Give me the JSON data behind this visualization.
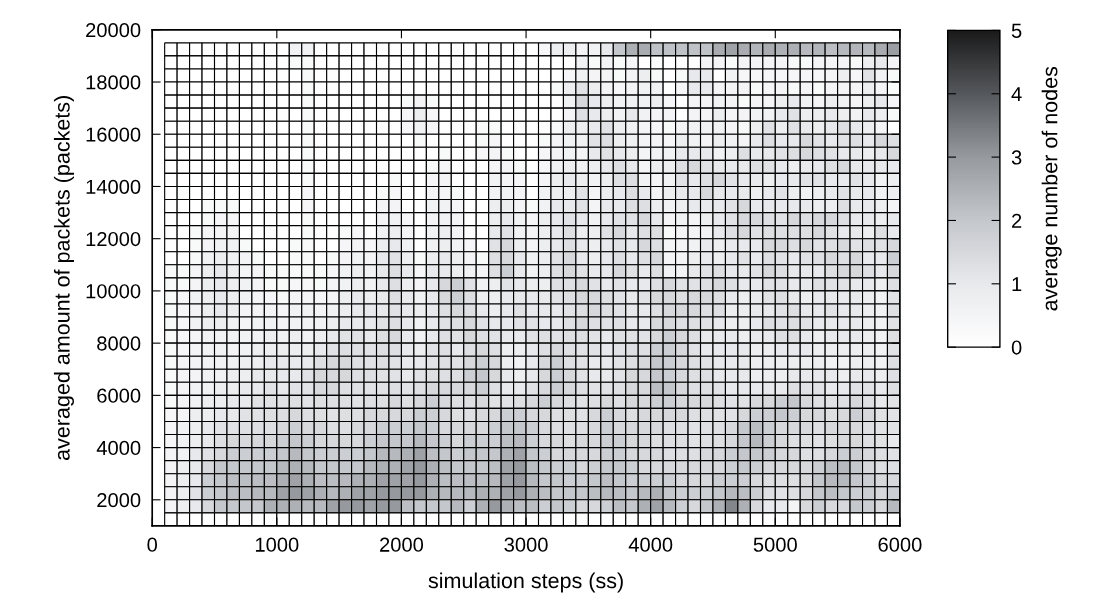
{
  "chart_data": {
    "type": "heatmap",
    "xlabel": "simulation steps (ss)",
    "ylabel": "averaged amount of packets (packets)",
    "clabel": "average number of nodes",
    "x": [
      150,
      250,
      350,
      450,
      550,
      650,
      750,
      850,
      950,
      1050,
      1150,
      1250,
      1350,
      1450,
      1550,
      1650,
      1750,
      1850,
      1950,
      2050,
      2150,
      2250,
      2350,
      2450,
      2550,
      2650,
      2750,
      2850,
      2950,
      3050,
      3150,
      3250,
      3350,
      3450,
      3550,
      3650,
      3750,
      3850,
      3950,
      4050,
      4150,
      4250,
      4350,
      4450,
      4550,
      4650,
      4750,
      4850,
      4950,
      5050,
      5150,
      5250,
      5350,
      5450,
      5550,
      5650,
      5750,
      5850,
      5950
    ],
    "y": [
      19250,
      18750,
      18250,
      17750,
      17250,
      16750,
      16250,
      15750,
      15250,
      14750,
      14250,
      13750,
      13250,
      12750,
      12250,
      11750,
      11250,
      10750,
      10250,
      9750,
      9250,
      8750,
      8250,
      7750,
      7250,
      6750,
      6250,
      5750,
      5250,
      4750,
      4250,
      3750,
      3250,
      2750,
      2250,
      1750,
      1250
    ],
    "cells": [
      [
        0,
        0,
        0,
        0,
        0,
        0,
        0,
        0,
        0,
        0,
        0.6,
        0.6,
        0,
        0,
        0,
        0,
        0,
        0,
        0,
        0,
        0,
        0,
        0,
        0,
        0,
        0,
        0,
        0,
        0,
        0,
        0.4,
        0.8,
        0.8,
        0.5,
        0.6,
        1,
        2,
        2.5,
        2.6,
        2.1,
        2.1,
        2.1,
        2.1,
        2.1,
        2.6,
        2.8,
        2.6,
        2.4,
        2.6,
        2.5,
        2.5,
        2.3,
        2.4,
        2.2,
        2.3,
        2.4,
        2.3,
        2.6,
        2.9
      ],
      [
        0,
        0,
        0,
        0,
        0,
        0,
        0,
        0,
        0,
        0,
        0.3,
        0.3,
        0,
        0,
        0,
        0,
        0,
        0,
        0,
        0,
        0,
        0,
        0,
        0,
        0,
        0,
        0,
        0,
        0,
        0,
        0,
        0,
        0,
        0.6,
        0.3,
        0.5,
        0.3,
        0.4,
        0,
        0.2,
        0,
        0,
        0,
        0.5,
        0.5,
        0.3,
        0.5,
        0.5,
        0.5,
        0.5,
        0.3,
        0.3,
        0.5,
        0.5,
        0.5,
        0.3,
        0.8,
        1,
        0.5
      ],
      [
        0,
        0,
        0,
        0,
        0,
        0,
        0,
        0,
        0,
        0,
        0,
        0.3,
        0,
        0,
        0,
        0,
        0,
        0,
        0,
        0,
        0,
        0,
        0,
        0,
        0,
        0,
        0,
        0,
        0,
        0,
        0,
        0,
        0.4,
        0.6,
        0.5,
        0.5,
        0.3,
        0.5,
        0.8,
        0.3,
        0,
        0.3,
        1,
        1,
        0,
        0.6,
        0.4,
        0.4,
        0.4,
        0.4,
        0.4,
        0.4,
        0.4,
        0.5,
        0.8,
        0.4,
        1.2,
        0.6,
        0.3
      ],
      [
        0,
        0,
        0,
        0,
        0,
        0,
        0,
        0,
        0,
        0,
        0,
        0.3,
        0,
        0,
        0,
        0,
        0,
        0,
        0,
        0,
        0,
        0,
        0,
        0,
        0,
        0,
        0,
        0,
        0,
        0,
        0,
        0.3,
        0.8,
        1.2,
        0.8,
        0.5,
        0.4,
        0.5,
        0.6,
        0.6,
        0,
        0.4,
        1,
        1,
        0.5,
        0.5,
        0.5,
        0.3,
        0.4,
        0.5,
        0.3,
        0.5,
        0.3,
        0.5,
        0.5,
        0.5,
        0.8,
        0.5,
        0.2
      ],
      [
        0,
        0,
        0,
        0,
        0,
        0,
        0,
        0,
        0,
        0,
        0,
        0.3,
        0,
        0,
        0,
        0,
        0,
        0,
        0,
        0.3,
        0.5,
        0.3,
        0,
        0,
        0,
        0,
        0,
        0,
        0,
        0,
        0,
        0,
        0.6,
        1.5,
        1,
        0.8,
        0.6,
        0.6,
        0.6,
        0.8,
        0.4,
        0,
        0.5,
        0.5,
        0.6,
        0.5,
        0.3,
        0.5,
        0.5,
        0.8,
        1,
        0.6,
        0.5,
        0.8,
        0.6,
        0.5,
        0.8,
        1,
        0.4
      ],
      [
        0,
        0,
        0,
        0,
        0,
        0,
        0,
        0,
        0,
        0,
        0,
        0.3,
        0,
        0,
        0,
        0,
        0,
        0,
        0,
        0.4,
        0.8,
        0.4,
        0,
        0,
        0,
        0,
        0,
        0,
        0,
        0,
        0,
        0,
        0.5,
        1.3,
        1,
        0.8,
        0.6,
        1,
        0.6,
        0.5,
        0.5,
        0,
        0.5,
        0.5,
        0.8,
        0.5,
        0.5,
        0.6,
        0.6,
        1,
        1.2,
        0.8,
        0.8,
        1,
        0.8,
        0.6,
        1,
        0.8,
        0.3
      ],
      [
        0,
        0,
        0,
        0,
        0,
        0,
        0,
        0,
        0,
        0,
        0,
        0.3,
        0,
        0,
        0,
        0,
        0,
        0,
        0,
        0.4,
        0.6,
        0.4,
        0,
        0,
        0,
        0.3,
        0.3,
        0,
        0,
        0,
        0,
        0.3,
        0.8,
        0.8,
        1,
        1.2,
        0.8,
        0.6,
        0.5,
        0.4,
        0.3,
        0.5,
        0.6,
        0.6,
        0.6,
        0.5,
        0.3,
        0.8,
        1.2,
        0.8,
        1.2,
        1,
        0.8,
        1,
        1.3,
        1,
        0.8,
        0.5,
        0
      ],
      [
        0,
        0,
        0,
        0,
        0,
        0,
        0,
        0,
        0,
        0,
        0,
        0.3,
        0,
        0,
        0,
        0,
        0,
        0,
        0,
        0,
        0.3,
        0,
        0,
        0,
        0,
        0.3,
        0.4,
        0,
        0,
        0,
        0.3,
        0.5,
        0.6,
        0.6,
        1.2,
        1.3,
        0.8,
        0.6,
        0.5,
        0.5,
        0.4,
        0.8,
        0.6,
        0.5,
        0.8,
        0.6,
        0.5,
        1,
        1.3,
        1,
        1,
        1.5,
        1.2,
        1,
        1.2,
        1.3,
        1,
        1.5,
        1.3
      ],
      [
        0,
        0,
        0,
        0,
        0,
        0,
        0,
        0,
        0,
        0,
        0,
        0.3,
        0,
        0,
        0,
        0,
        0,
        0,
        0,
        0,
        0,
        0,
        0.3,
        0,
        0,
        0.4,
        0.5,
        0.3,
        0,
        0,
        0.4,
        0.5,
        0.6,
        0.5,
        1,
        1.2,
        1,
        0.8,
        0.5,
        0.6,
        0.6,
        1,
        1,
        1,
        0.6,
        0.8,
        1.3,
        1,
        1,
        1.2,
        1.3,
        1.5,
        1.3,
        1.2,
        1,
        1,
        0.8,
        1,
        1.5
      ],
      [
        0,
        0,
        0,
        0,
        0,
        0,
        0,
        0,
        0,
        0,
        0,
        0.3,
        0,
        0,
        0,
        0,
        0,
        0,
        0,
        0,
        0,
        0.3,
        0.4,
        0,
        0,
        0,
        0.5,
        0.5,
        0.3,
        0,
        0.4,
        0.6,
        0.8,
        0.6,
        0.8,
        1,
        1.3,
        1,
        0.5,
        0.8,
        0.8,
        1.3,
        1.5,
        1.2,
        1,
        1,
        1,
        1.3,
        1.2,
        1,
        0.8,
        1,
        1,
        1.3,
        1.5,
        1,
        1,
        1,
        1
      ],
      [
        0,
        0,
        0,
        0,
        0,
        0,
        0,
        0,
        0,
        0,
        0,
        0.3,
        0,
        0,
        0,
        0,
        0,
        0,
        0.3,
        0,
        0,
        0.4,
        0.5,
        0,
        0,
        0,
        0.6,
        0.5,
        0.4,
        0,
        0.5,
        0.8,
        1,
        0.8,
        0.6,
        0.8,
        1.3,
        1.3,
        0.6,
        0.5,
        0.6,
        1.2,
        1,
        1.3,
        1.5,
        1.2,
        1,
        1,
        0.8,
        1,
        1,
        1.2,
        1.2,
        1,
        1,
        1.2,
        1,
        0.6,
        0.8
      ],
      [
        0,
        0.2,
        0,
        0,
        0,
        0,
        0,
        0,
        0,
        0,
        0,
        0.4,
        0,
        0,
        0,
        0,
        0,
        0.3,
        0.4,
        0,
        0,
        0.5,
        0.5,
        0.3,
        0,
        0,
        0.6,
        0.6,
        0.5,
        0,
        0.6,
        0.8,
        0.8,
        1.2,
        0.5,
        0.8,
        1,
        1.3,
        1,
        0.5,
        0.8,
        1,
        1,
        1.5,
        1,
        1,
        1,
        0.8,
        1,
        1.2,
        0.8,
        0.6,
        0.8,
        1,
        1.2,
        1,
        1,
        0.6,
        0.8
      ],
      [
        0,
        0,
        0,
        0.3,
        0.3,
        0.3,
        0,
        0,
        0,
        0,
        0,
        0.4,
        0,
        0,
        0,
        0,
        0,
        0.5,
        0.5,
        0,
        0,
        0.6,
        0.6,
        0.4,
        0,
        0,
        0.8,
        0.8,
        0.5,
        0.3,
        0.6,
        1,
        1,
        1.2,
        0.5,
        1,
        1,
        1.3,
        1.3,
        0.8,
        0.6,
        0.8,
        1,
        1,
        1,
        1.2,
        1.5,
        1,
        1,
        1,
        1,
        1,
        0.8,
        0.8,
        1.3,
        1,
        1,
        0.8,
        0.5
      ],
      [
        0,
        0,
        0,
        0.3,
        0.4,
        0.4,
        0,
        0,
        0,
        0,
        0,
        0.3,
        0,
        0,
        0,
        0,
        0,
        0.5,
        0.6,
        0.4,
        0,
        0.5,
        0.6,
        0.5,
        0,
        0,
        0.8,
        1,
        0.6,
        0.4,
        0.8,
        1,
        1.2,
        1,
        0.6,
        1,
        1.2,
        1.2,
        1.5,
        1,
        0.5,
        0.6,
        0.5,
        0.8,
        1,
        1.2,
        1.5,
        1.5,
        1.3,
        1.2,
        1.5,
        1.3,
        1.5,
        1.5,
        1.3,
        1,
        1,
        0.8,
        1
      ],
      [
        0,
        0,
        0.3,
        0.5,
        0.5,
        0.5,
        0,
        0,
        0,
        0,
        0,
        0.3,
        0,
        0,
        0.3,
        0.4,
        0,
        0.6,
        0.8,
        0.5,
        0,
        0.6,
        0.8,
        0.5,
        0,
        0,
        1,
        1.2,
        0.6,
        0.5,
        0.8,
        1,
        1.3,
        0.8,
        0.8,
        1.2,
        1.5,
        1,
        1.3,
        1.3,
        0.3,
        0.5,
        0.5,
        0.6,
        1,
        1.3,
        1.5,
        1.2,
        1.3,
        1.3,
        1.3,
        1.3,
        1.5,
        1.2,
        1,
        1,
        0.8,
        1.3,
        1
      ],
      [
        0,
        0,
        0.3,
        0.5,
        0.6,
        0.6,
        0.3,
        0,
        0,
        0,
        0.3,
        0.3,
        0,
        0,
        0.4,
        0.5,
        0.4,
        0.8,
        1,
        0.6,
        0,
        0.6,
        0.8,
        0.6,
        0.4,
        0,
        1.2,
        1.5,
        0.8,
        0.5,
        0.8,
        1,
        1.3,
        1,
        0.8,
        1,
        1.2,
        1,
        1.5,
        1.3,
        0.5,
        0.5,
        0.6,
        1,
        0.8,
        1,
        1,
        1,
        1.5,
        1.5,
        1.3,
        1.5,
        1.2,
        1.3,
        1.5,
        1.2,
        1.3,
        1.2,
        1.5
      ],
      [
        0,
        0,
        0.3,
        0.6,
        0.8,
        0.6,
        0.5,
        0.3,
        0,
        0,
        0.3,
        0.3,
        0,
        0.3,
        0.5,
        0.6,
        0.5,
        1,
        1.2,
        0.8,
        0.3,
        0.8,
        1,
        0.8,
        0.5,
        0.3,
        1.3,
        1.5,
        1,
        0.6,
        0.8,
        1.2,
        1.5,
        1,
        0.8,
        1,
        1.3,
        1,
        1.3,
        1.5,
        0.5,
        0.5,
        0.8,
        1,
        0.8,
        1,
        1.2,
        1,
        1.3,
        1.2,
        1,
        1.2,
        1.3,
        1.5,
        1.3,
        1.5,
        1,
        1,
        1.8
      ],
      [
        0.3,
        0.3,
        0.5,
        0.8,
        1,
        0.8,
        0.5,
        0.5,
        0.3,
        0.3,
        0.3,
        0.3,
        0.3,
        0.4,
        0.6,
        0.8,
        0.6,
        1,
        1.3,
        1,
        0.4,
        1,
        1,
        0.8,
        0.6,
        0.5,
        1.3,
        1.8,
        1,
        0.6,
        0.8,
        1.3,
        1.5,
        1.2,
        1,
        1,
        1.5,
        1.2,
        1,
        1.3,
        0.6,
        0.5,
        1,
        1.2,
        1.3,
        1,
        1,
        1.2,
        1.5,
        1.3,
        1,
        1,
        1,
        1.3,
        1.5,
        1.5,
        1.3,
        1,
        1.5
      ],
      [
        0.3,
        0.3,
        0.5,
        0.8,
        1,
        0.8,
        0.6,
        0.5,
        0.3,
        0.3,
        0.4,
        0.4,
        0.3,
        0.5,
        0.6,
        0.8,
        0.6,
        1,
        1.3,
        0.8,
        0.5,
        1,
        1.5,
        1.8,
        1.2,
        0.6,
        0.8,
        1.2,
        1,
        0.8,
        0.8,
        1.3,
        1.3,
        1.5,
        1.2,
        1,
        1.2,
        1,
        1,
        1.3,
        1.5,
        1.2,
        1.2,
        1.3,
        1.5,
        1.3,
        1,
        1,
        1.2,
        1.2,
        1,
        1,
        1.3,
        1.2,
        1.2,
        1,
        1,
        0.8,
        1.3
      ],
      [
        0.3,
        0.4,
        0.6,
        0.8,
        1,
        0.8,
        0.6,
        0.5,
        0.4,
        0.3,
        0.5,
        0.5,
        0.4,
        0.5,
        0.8,
        1,
        0.8,
        1,
        1.3,
        1,
        0.6,
        1,
        1.5,
        1.8,
        1.3,
        0.8,
        0.8,
        1,
        1,
        1,
        1,
        1.2,
        1.3,
        1.5,
        1.5,
        1.3,
        1.2,
        1,
        1.2,
        1.5,
        1.5,
        1.3,
        1.5,
        1.5,
        1.3,
        1,
        0.8,
        1,
        1.2,
        1.3,
        1,
        0.8,
        1,
        1,
        1,
        1,
        0.8,
        0.6,
        1.2
      ],
      [
        0.3,
        0.4,
        0.5,
        0.8,
        1,
        0.8,
        0.5,
        0.5,
        0.5,
        0.4,
        0.6,
        0.6,
        0.5,
        0.6,
        0.8,
        1,
        1,
        1,
        1.2,
        1,
        0.8,
        1,
        1.3,
        1.5,
        1.3,
        1,
        0.8,
        1,
        1.2,
        1,
        1,
        1,
        1.2,
        1.3,
        1.5,
        1.3,
        1.2,
        1,
        1,
        1.3,
        1.5,
        1.5,
        1.5,
        1.3,
        1.3,
        0.8,
        0.8,
        1,
        1,
        1.2,
        1.3,
        1,
        1,
        1.2,
        1,
        1,
        0.8,
        0.6,
        1.3
      ],
      [
        0.3,
        0.4,
        0.6,
        0.8,
        0.8,
        0.6,
        0.5,
        0.6,
        0.6,
        0.5,
        0.6,
        0.6,
        0.6,
        0.8,
        1,
        1,
        1,
        1.2,
        1.3,
        1,
        0.6,
        1,
        1.2,
        1.3,
        1.5,
        1.2,
        1,
        1,
        1.2,
        1.2,
        1,
        1,
        1.3,
        1.5,
        1.3,
        1.2,
        1.3,
        1,
        1,
        1.5,
        1.5,
        1.3,
        1.3,
        1.2,
        1,
        0.8,
        0.8,
        1,
        1.3,
        1.2,
        1.3,
        1.2,
        1,
        1,
        1,
        1,
        0.8,
        0.6,
        1.2
      ],
      [
        0.3,
        0.4,
        0.5,
        0.6,
        0.6,
        0.6,
        0.6,
        0.6,
        0.8,
        0.6,
        0.8,
        0.6,
        0.8,
        1,
        1.2,
        1.2,
        1,
        1.3,
        1.5,
        1,
        0.6,
        1,
        1.3,
        1.2,
        1.5,
        1.3,
        1.2,
        1,
        1,
        1.2,
        1.3,
        1.2,
        1.3,
        1.3,
        1.2,
        1,
        1.3,
        1.2,
        1.2,
        1.5,
        1.8,
        1.5,
        1.3,
        1,
        1,
        1,
        0.8,
        1,
        1,
        1.3,
        1.3,
        1,
        0.8,
        1,
        1,
        1,
        0.8,
        0.6,
        1.3
      ],
      [
        0.3,
        0.4,
        0.5,
        0.6,
        0.6,
        0.5,
        0.6,
        0.8,
        0.8,
        0.8,
        0.8,
        0.8,
        1,
        1.2,
        1.3,
        1.3,
        1.2,
        1.3,
        1.3,
        1,
        0.8,
        1.2,
        1.3,
        1,
        1.3,
        1.5,
        1.3,
        0.8,
        0.8,
        1,
        1.3,
        1.5,
        1.3,
        1.2,
        1.2,
        1,
        1.2,
        1.3,
        1.3,
        1.8,
        1.8,
        1.5,
        1.2,
        1,
        1,
        1,
        1,
        0.8,
        0.8,
        1,
        1,
        1,
        0.8,
        0.8,
        0.8,
        0.8,
        0.8,
        0.6,
        1.2
      ],
      [
        0.3,
        0.5,
        0.5,
        0.6,
        0.6,
        0.6,
        0.8,
        0.8,
        1,
        1,
        1,
        1,
        1.3,
        1.5,
        1.5,
        1.3,
        1.2,
        1.3,
        1.2,
        1,
        1,
        1.2,
        1.3,
        1.2,
        1.5,
        1.8,
        1.5,
        0.8,
        0.6,
        1,
        1.5,
        1.8,
        1.3,
        1.2,
        1,
        1,
        1.2,
        1.3,
        1.5,
        2,
        1.8,
        1.5,
        1.3,
        1.2,
        1,
        1,
        1,
        0.8,
        0.8,
        0.8,
        0.8,
        0.8,
        0.8,
        0.6,
        0.6,
        0.8,
        0.8,
        0.6,
        1.3
      ],
      [
        0.3,
        0.5,
        0.5,
        0.6,
        0.6,
        0.8,
        0.8,
        1,
        1,
        1,
        1,
        1.2,
        1.5,
        1.5,
        1.5,
        1.3,
        1.3,
        1.2,
        1.2,
        1,
        1.2,
        1.3,
        1.3,
        1.3,
        1.8,
        2,
        1.5,
        1,
        0.8,
        1,
        1.5,
        1.8,
        1.5,
        1.2,
        1,
        1,
        1.2,
        1.5,
        1.5,
        2,
        1.8,
        1.5,
        1.3,
        1.3,
        1,
        1,
        1,
        0.8,
        0.8,
        0.8,
        1,
        1,
        1,
        1,
        0.8,
        1,
        1,
        0.8,
        1.3
      ],
      [
        0.3,
        0.5,
        0.6,
        0.6,
        0.8,
        0.8,
        1,
        1,
        1.2,
        1,
        1.2,
        1.2,
        1.5,
        1.5,
        1.3,
        1.3,
        1.2,
        1.2,
        1.3,
        1.2,
        1.3,
        1.5,
        1.5,
        1.5,
        1.5,
        1.8,
        1.3,
        1,
        1,
        1.2,
        1.5,
        1.8,
        1.5,
        1.3,
        1.2,
        1.2,
        1.3,
        1.5,
        1.5,
        2.2,
        2,
        1.5,
        1.3,
        1.3,
        1.2,
        1,
        1,
        1,
        1,
        1,
        1.3,
        1.2,
        1.2,
        1,
        1,
        1.2,
        1.2,
        1,
        1.3
      ],
      [
        0.3,
        0.5,
        0.6,
        0.8,
        0.8,
        1,
        1,
        1.2,
        1.2,
        1.2,
        1.3,
        1.2,
        1.3,
        1.3,
        1.3,
        1.2,
        1.3,
        1.3,
        1.5,
        1.3,
        1.5,
        1.8,
        1.5,
        1.3,
        1.3,
        1.5,
        1.2,
        1.2,
        1.3,
        1.5,
        1.8,
        1.5,
        1.3,
        1.2,
        1.3,
        1.5,
        1.3,
        1.5,
        1.5,
        1.8,
        1.8,
        1.5,
        1.5,
        1.5,
        1.3,
        1.2,
        1.2,
        1.5,
        1.5,
        1.8,
        2,
        1.5,
        1.3,
        1.2,
        1.3,
        1.5,
        1.3,
        1,
        1.2
      ],
      [
        0.4,
        0.5,
        0.8,
        0.8,
        1,
        1,
        1.2,
        1.2,
        1.3,
        1.3,
        1.5,
        1.3,
        1.3,
        1.2,
        1.3,
        1.3,
        1.5,
        1.5,
        1.5,
        1.5,
        1.8,
        1.8,
        1.5,
        1.3,
        1.3,
        1.5,
        1.5,
        1.8,
        1.8,
        1.5,
        1.5,
        1.3,
        1.3,
        1.2,
        1.5,
        1.8,
        1.5,
        1.3,
        1.5,
        1.5,
        1.5,
        1.5,
        1.3,
        1.3,
        1.2,
        1.2,
        1.5,
        1.8,
        1.8,
        2,
        1.8,
        1.5,
        1.5,
        1.3,
        1.5,
        1.8,
        1.5,
        1.2,
        1.2
      ],
      [
        0.4,
        0.6,
        0.8,
        1,
        1.2,
        1.2,
        1.3,
        1.3,
        1.3,
        1.5,
        1.8,
        1.5,
        1.5,
        1.3,
        1.3,
        1.5,
        1.5,
        1.8,
        1.8,
        1.8,
        2,
        1.8,
        1.5,
        1.5,
        1.5,
        1.5,
        1.8,
        2,
        2,
        1.8,
        1.5,
        1.3,
        1.3,
        1.3,
        1.5,
        1.8,
        1.5,
        1.5,
        1.5,
        1.5,
        1.3,
        1.3,
        1.2,
        1.3,
        1.3,
        1.5,
        2,
        2.2,
        1.8,
        1.5,
        1.5,
        1.5,
        1.3,
        1.5,
        1.5,
        1.5,
        1.3,
        1.2,
        1.2
      ],
      [
        0.4,
        0.6,
        0.8,
        1,
        1.3,
        1.5,
        1.5,
        1.5,
        1.5,
        1.8,
        2,
        1.8,
        1.5,
        1.5,
        1.5,
        1.5,
        1.8,
        2,
        2,
        2,
        2.3,
        2,
        1.8,
        1.5,
        1.8,
        1.8,
        1.8,
        2.2,
        2.3,
        1.8,
        1.5,
        1.5,
        1.3,
        1.5,
        1.5,
        1.8,
        1.8,
        1.5,
        1.5,
        1.3,
        1.3,
        1.3,
        1.2,
        1.3,
        1.3,
        1.5,
        2,
        2.3,
        1.8,
        1.5,
        1.3,
        1.3,
        1.2,
        1.3,
        1.5,
        1.5,
        1.3,
        1.2,
        1
      ],
      [
        0.5,
        0.6,
        1,
        1.2,
        1.5,
        1.8,
        1.8,
        1.8,
        1.8,
        2,
        2.3,
        2,
        1.8,
        1.8,
        1.8,
        1.8,
        2,
        2.3,
        2.3,
        2.5,
        2.8,
        2.2,
        2,
        1.8,
        2,
        2,
        2,
        2.5,
        2.8,
        2,
        1.8,
        1.5,
        1.5,
        1.5,
        1.5,
        1.8,
        1.8,
        1.5,
        1.5,
        1.5,
        1.3,
        1.3,
        1.3,
        1.5,
        1.5,
        1.8,
        2,
        2,
        1.8,
        1.5,
        1.5,
        1.3,
        1.3,
        1.5,
        1.8,
        1.8,
        1.5,
        1.3,
        1.2
      ],
      [
        0.5,
        0.8,
        1,
        1.5,
        2,
        2,
        2,
        2,
        2,
        2.3,
        2.5,
        2.3,
        2,
        2,
        2,
        2,
        2.3,
        2.5,
        2.5,
        2.8,
        3,
        2.5,
        2.2,
        2,
        2,
        2,
        2.2,
        2.8,
        3,
        2.2,
        2,
        1.8,
        1.8,
        1.5,
        1.8,
        2,
        2,
        1.8,
        1.5,
        1.5,
        1.5,
        1.5,
        1.5,
        1.5,
        1.5,
        1.8,
        2,
        1.8,
        1.5,
        1.5,
        1.5,
        1.5,
        1.8,
        2.2,
        2.3,
        2,
        1.5,
        1.3,
        1.3
      ],
      [
        0.5,
        0.8,
        1,
        1.8,
        2,
        2.2,
        2.2,
        2.2,
        2.2,
        2.5,
        2.8,
        2.5,
        2.2,
        2.2,
        2.3,
        2.5,
        2.5,
        2.8,
        2.8,
        2.8,
        3,
        2.5,
        2.2,
        2.2,
        2.2,
        2.2,
        2.3,
        2.8,
        3,
        2.3,
        2,
        2,
        1.8,
        1.8,
        2,
        2.2,
        2,
        1.8,
        1.8,
        1.8,
        1.8,
        1.5,
        1.5,
        1.5,
        1.8,
        1.8,
        1.8,
        1.5,
        1.3,
        1.3,
        1.3,
        1.5,
        2,
        2.3,
        2.3,
        2,
        1.8,
        1.5,
        1.5
      ],
      [
        0.5,
        0.8,
        1.2,
        1.8,
        2,
        2.2,
        2.2,
        2.3,
        2.3,
        2.8,
        3,
        2.8,
        2.5,
        2.3,
        2.5,
        2.8,
        2.8,
        3,
        3,
        3,
        3,
        2.5,
        2.3,
        2.3,
        2.3,
        2.5,
        2.5,
        2.8,
        3,
        2.5,
        2.2,
        2,
        2,
        2,
        2.2,
        2.3,
        2.2,
        2,
        2.3,
        2.5,
        2,
        1.8,
        1.8,
        1.8,
        2,
        2.3,
        2.2,
        1.8,
        1.3,
        1.2,
        1.3,
        1.5,
        2,
        2.2,
        2,
        1.8,
        1.8,
        1.5,
        1.8
      ],
      [
        0.5,
        0.8,
        1,
        1.5,
        2,
        2,
        2,
        2,
        2.5,
        2.5,
        2.5,
        2.3,
        2.3,
        2.8,
        3,
        3,
        2.8,
        3,
        3,
        2.2,
        2,
        2,
        2,
        2.3,
        1.8,
        2.5,
        3,
        2.5,
        2.2,
        2.2,
        1.8,
        2,
        1.8,
        1.5,
        1.5,
        1.8,
        2.2,
        2,
        2.5,
        2.8,
        2.3,
        1.8,
        1.5,
        2,
        2.5,
        3.3,
        2.5,
        1.5,
        1,
        1,
        0.5,
        1.5,
        1.8,
        1.5,
        1.5,
        2,
        1.8,
        1.5,
        2.3
      ],
      [
        0,
        0,
        0,
        0,
        0,
        0,
        0,
        0,
        0,
        0,
        0,
        0,
        0,
        0,
        0,
        0,
        0,
        0,
        0,
        0,
        0,
        0,
        0,
        0,
        0,
        0,
        0,
        0,
        0,
        0,
        0,
        0,
        0,
        0,
        0,
        0,
        0,
        0,
        0,
        0,
        0,
        0,
        0,
        0,
        0,
        0,
        0,
        0,
        0,
        0,
        0,
        0,
        0,
        0,
        0,
        0,
        0,
        0,
        0
      ]
    ],
    "xlim": [
      0,
      6000
    ],
    "xticks": [
      0,
      1000,
      2000,
      3000,
      4000,
      5000,
      6000
    ],
    "ylim": [
      1000,
      20000
    ],
    "yticks": [
      2000,
      4000,
      6000,
      8000,
      10000,
      12000,
      14000,
      16000,
      18000,
      20000
    ],
    "clim": [
      0,
      5
    ],
    "cticks": [
      0,
      1,
      2,
      3,
      4,
      5
    ]
  }
}
